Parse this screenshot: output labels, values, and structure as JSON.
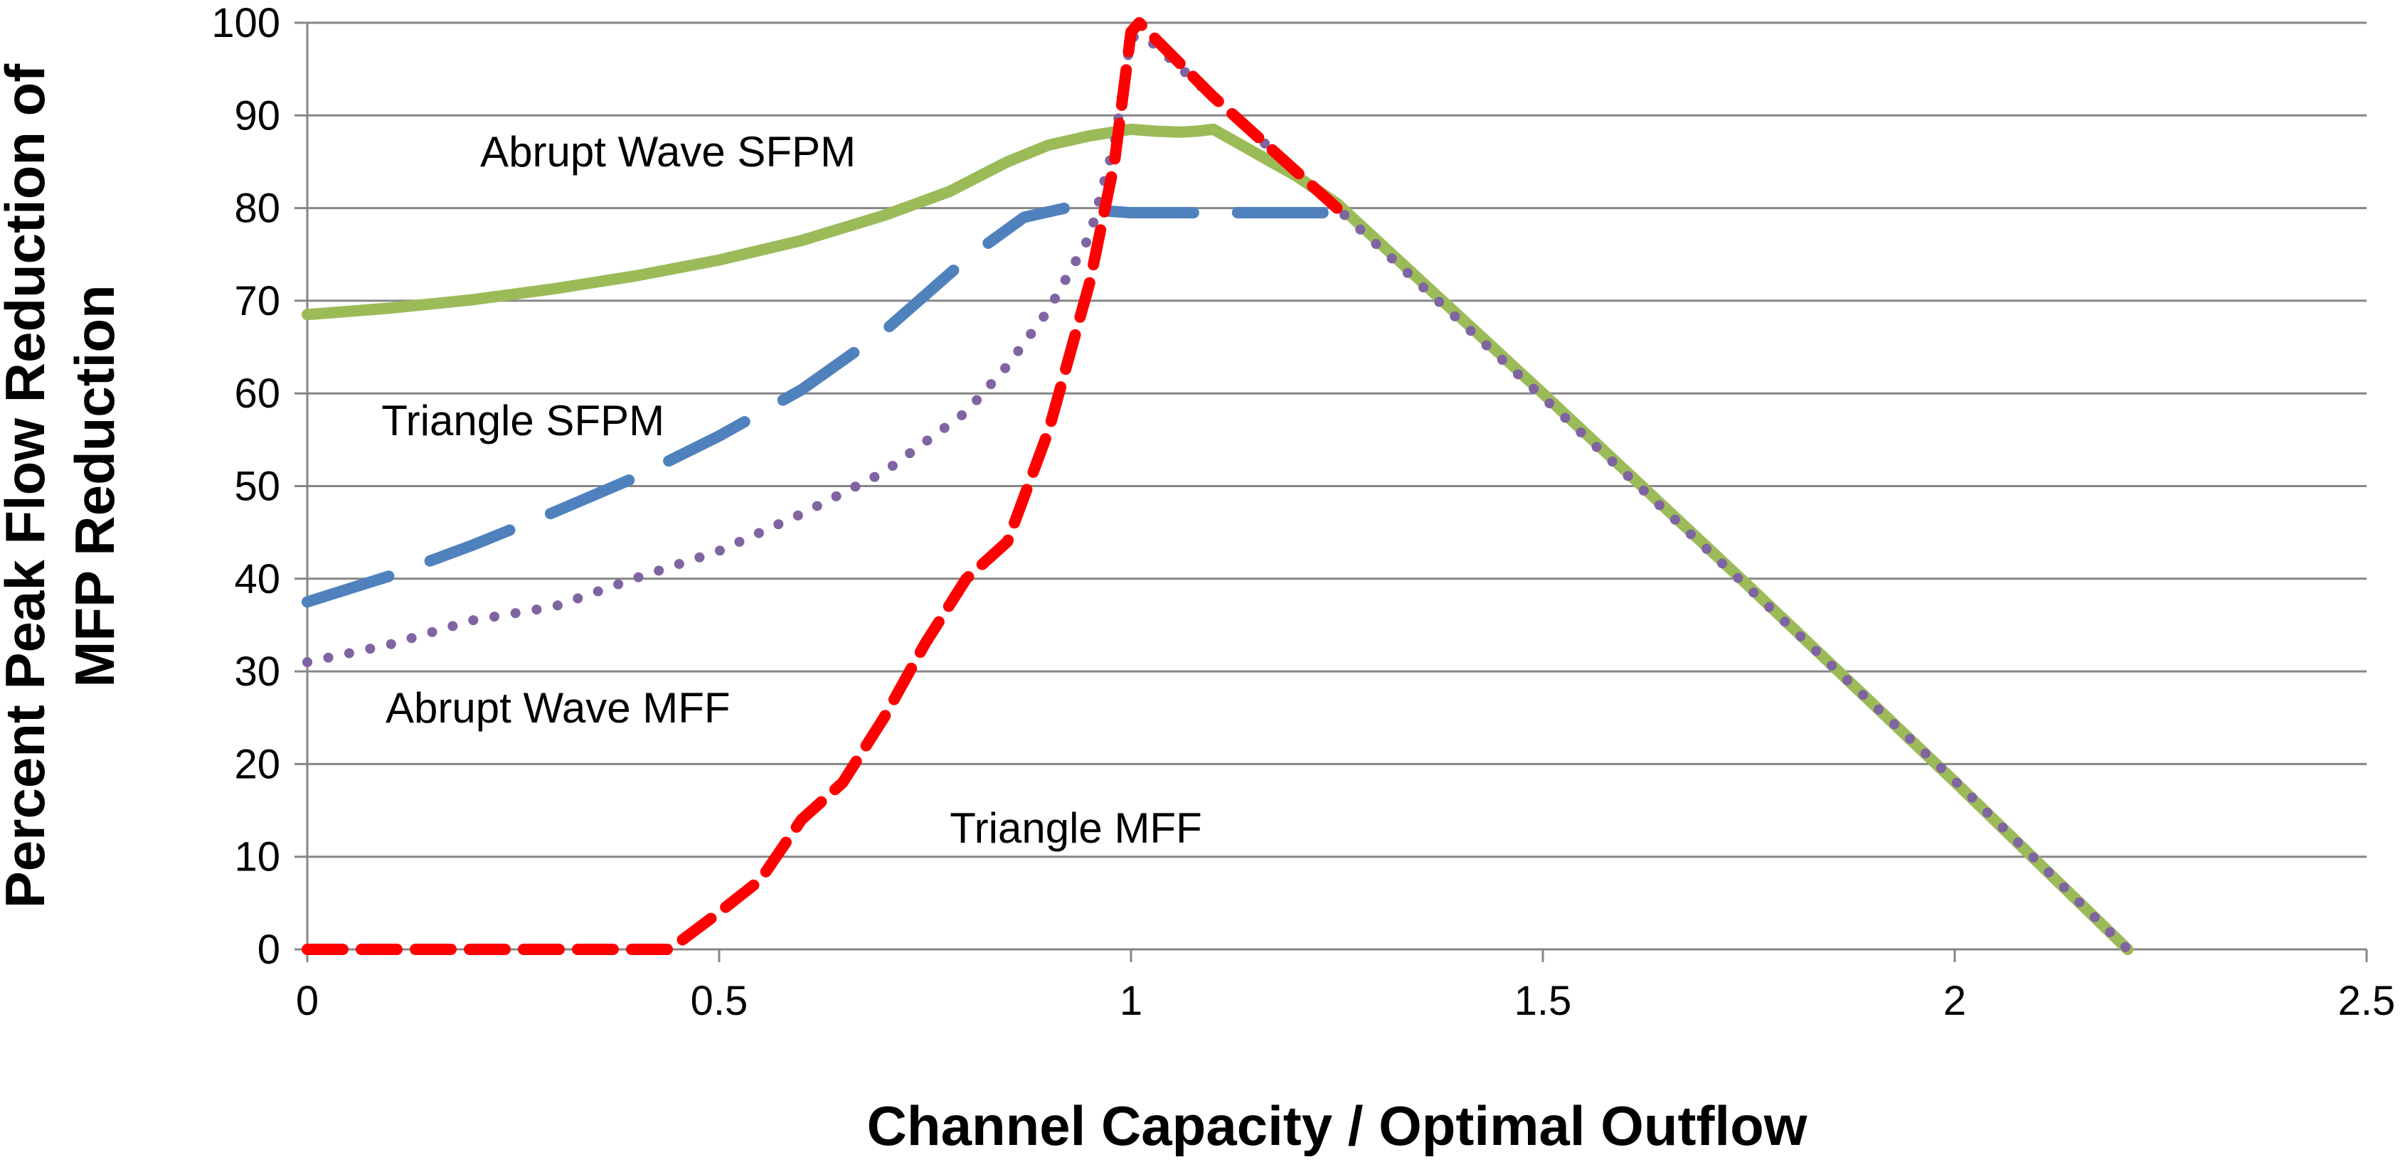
{
  "chart_data": {
    "type": "line",
    "title": "",
    "xlabel": "Channel Capacity / Optimal Outflow",
    "ylabel_line1": "Percent Peak Flow Reduction of",
    "ylabel_line2": "MFP Reduction",
    "xlim": [
      0,
      2.5
    ],
    "ylim": [
      0,
      100
    ],
    "x_ticks": [
      {
        "value": 0,
        "label": "0"
      },
      {
        "value": 0.5,
        "label": "0.5"
      },
      {
        "value": 1,
        "label": "1"
      },
      {
        "value": 1.5,
        "label": "1.5"
      },
      {
        "value": 2,
        "label": "2"
      },
      {
        "value": 2.5,
        "label": "2.5"
      }
    ],
    "y_ticks": [
      {
        "value": 0,
        "label": "0"
      },
      {
        "value": 10,
        "label": "10"
      },
      {
        "value": 20,
        "label": "20"
      },
      {
        "value": 30,
        "label": "30"
      },
      {
        "value": 40,
        "label": "40"
      },
      {
        "value": 50,
        "label": "50"
      },
      {
        "value": 60,
        "label": "60"
      },
      {
        "value": 70,
        "label": "70"
      },
      {
        "value": 80,
        "label": "80"
      },
      {
        "value": 90,
        "label": "90"
      },
      {
        "value": 100,
        "label": "100"
      }
    ],
    "grid": "horizontal",
    "series": [
      {
        "name": "Abrupt Wave SFPM",
        "color": "#9bbb59",
        "style": "solid",
        "x": [
          0,
          0.1,
          0.2,
          0.3,
          0.4,
          0.5,
          0.6,
          0.7,
          0.78,
          0.85,
          0.9,
          0.95,
          1.0,
          1.03,
          1.06,
          1.08,
          1.1,
          1.15,
          1.2,
          1.25,
          1.5,
          1.75,
          2.0,
          2.21
        ],
        "y": [
          68.5,
          69.2,
          70.1,
          71.3,
          72.7,
          74.4,
          76.5,
          79.2,
          81.8,
          85.0,
          86.8,
          87.8,
          88.5,
          88.3,
          88.2,
          88.3,
          88.5,
          86.0,
          83.5,
          80.5,
          60.0,
          39.2,
          18.1,
          0
        ]
      },
      {
        "name": "Triangle SFPM",
        "color": "#4f81bd",
        "style": "long-dash",
        "x": [
          0,
          0.1,
          0.2,
          0.3,
          0.4,
          0.5,
          0.6,
          0.7,
          0.8,
          0.87,
          0.92,
          1.0,
          1.1,
          1.2,
          1.24
        ],
        "y": [
          37.5,
          40.3,
          43.6,
          47.2,
          51.0,
          55.4,
          60.4,
          66.7,
          74.5,
          79.0,
          80.0,
          79.5,
          79.5,
          79.5,
          79.5
        ]
      },
      {
        "name": "Abrupt Wave MFF",
        "color": "#8064a2",
        "style": "dotted",
        "x": [
          0,
          0.1,
          0.2,
          0.3,
          0.4,
          0.5,
          0.6,
          0.7,
          0.8,
          0.85,
          0.9,
          0.95,
          0.98,
          1.0,
          1.02,
          1.25,
          1.5,
          1.75,
          2.0,
          2.21
        ],
        "y": [
          31.0,
          32.9,
          35.5,
          37.0,
          40.1,
          43.0,
          47.0,
          51.5,
          58.0,
          63.0,
          69.0,
          77.0,
          87.0,
          98.5,
          98.3,
          80.0,
          59.6,
          39.0,
          18.2,
          0
        ]
      },
      {
        "name": "Triangle MFF",
        "color": "#ff0000",
        "style": "dashed",
        "x": [
          0,
          0.2,
          0.44,
          0.5,
          0.55,
          0.6,
          0.65,
          0.7,
          0.75,
          0.8,
          0.85,
          0.9,
          0.95,
          0.98,
          1.0,
          1.01,
          1.1,
          1.2,
          1.25
        ],
        "y": [
          0,
          0,
          0,
          4.0,
          7.5,
          14.0,
          18.0,
          25.0,
          33.0,
          40.0,
          44.0,
          56.0,
          72.0,
          85.0,
          99.0,
          100,
          92.0,
          84.0,
          80.0
        ]
      }
    ],
    "annotations": [
      {
        "text": "Abrupt Wave SFPM",
        "x": 0.21,
        "y": 84.5
      },
      {
        "text": "Triangle SFPM",
        "x": 0.09,
        "y": 55.5
      },
      {
        "text": "Abrupt Wave MFF",
        "x": 0.095,
        "y": 24.5
      },
      {
        "text": "Triangle MFF",
        "x": 0.78,
        "y": 11.5
      }
    ]
  }
}
